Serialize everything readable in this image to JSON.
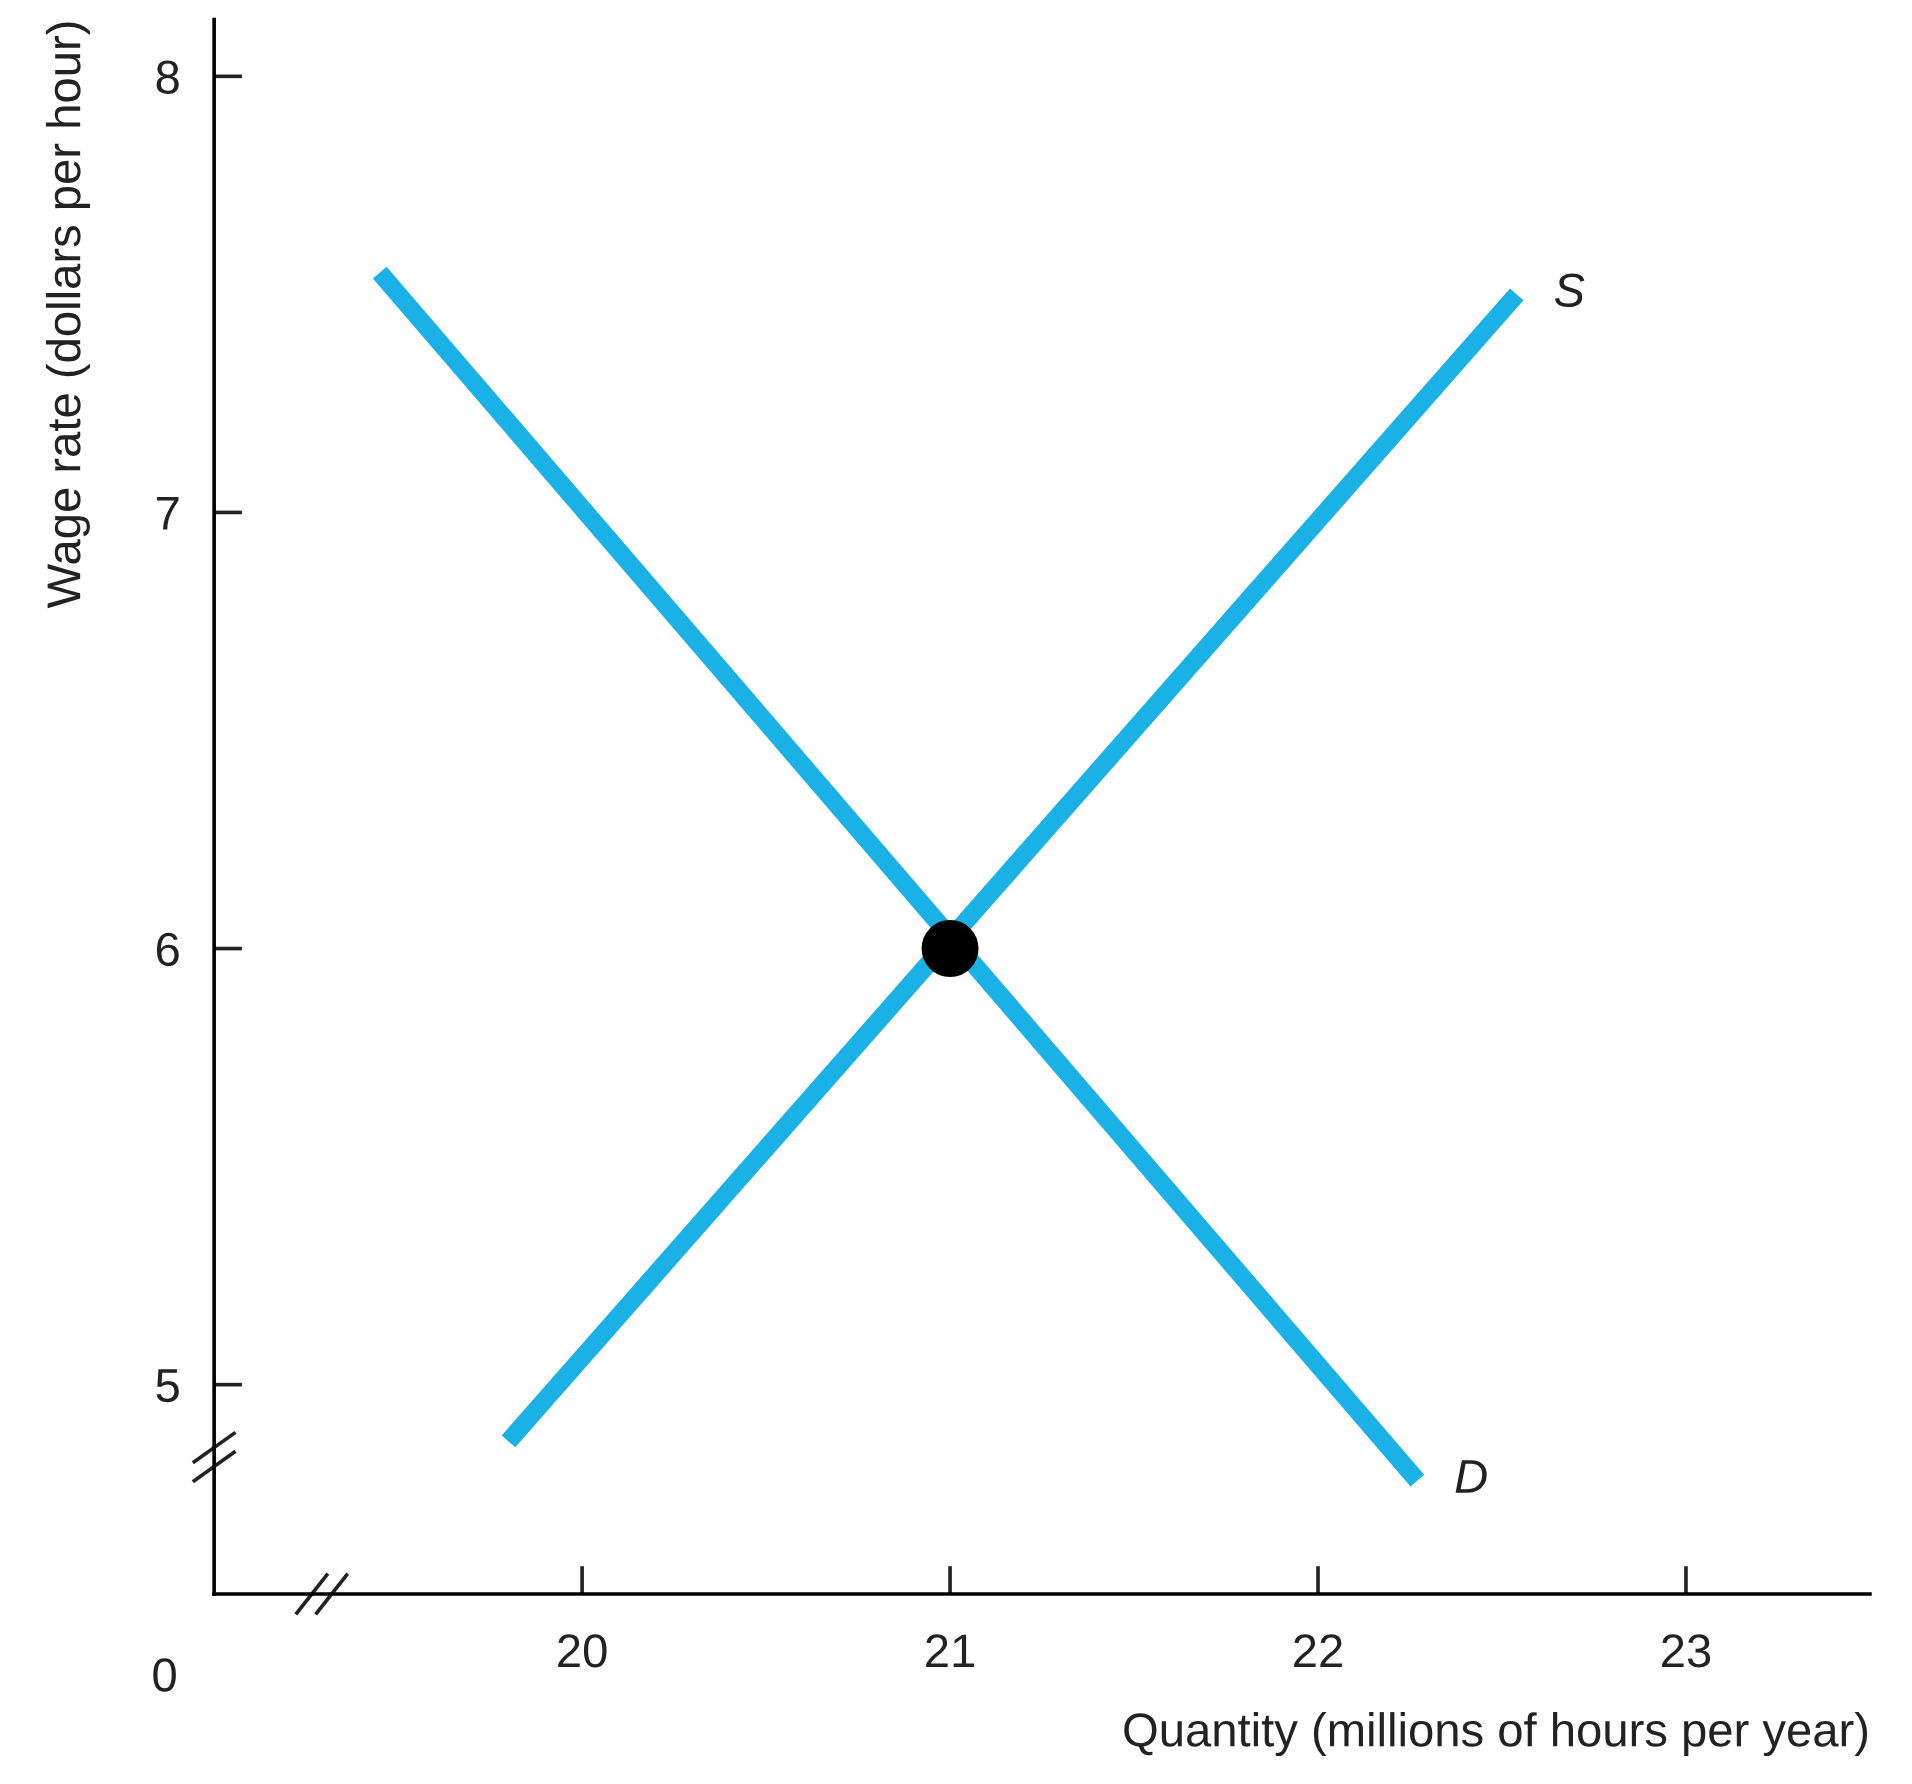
{
  "chart_data": {
    "type": "line",
    "xlabel": "Quantity (millions of hours per year)",
    "ylabel": "Wage rate (dollars per hour)",
    "series": [
      {
        "name": "S",
        "color": "#1ab2e6",
        "x": [
          19.8,
          22.54
        ],
        "values": [
          4.87,
          7.5
        ]
      },
      {
        "name": "D",
        "color": "#1ab2e6",
        "x": [
          19.45,
          22.27
        ],
        "values": [
          7.55,
          4.78
        ]
      },
      {
        "type": "scatter",
        "color": "#000000",
        "marker": "circle",
        "x": [
          21
        ],
        "values": [
          6
        ]
      }
    ],
    "xlim": [
      19,
      23.5
    ],
    "ylim": [
      4.52,
      8.13
    ],
    "xticks": [
      20,
      21,
      22,
      23
    ],
    "yticks": [
      5,
      6,
      7,
      8
    ],
    "grid": false,
    "legend": false,
    "marker": "none",
    "line_style": "solid",
    "annotations": [
      "0"
    ]
  }
}
